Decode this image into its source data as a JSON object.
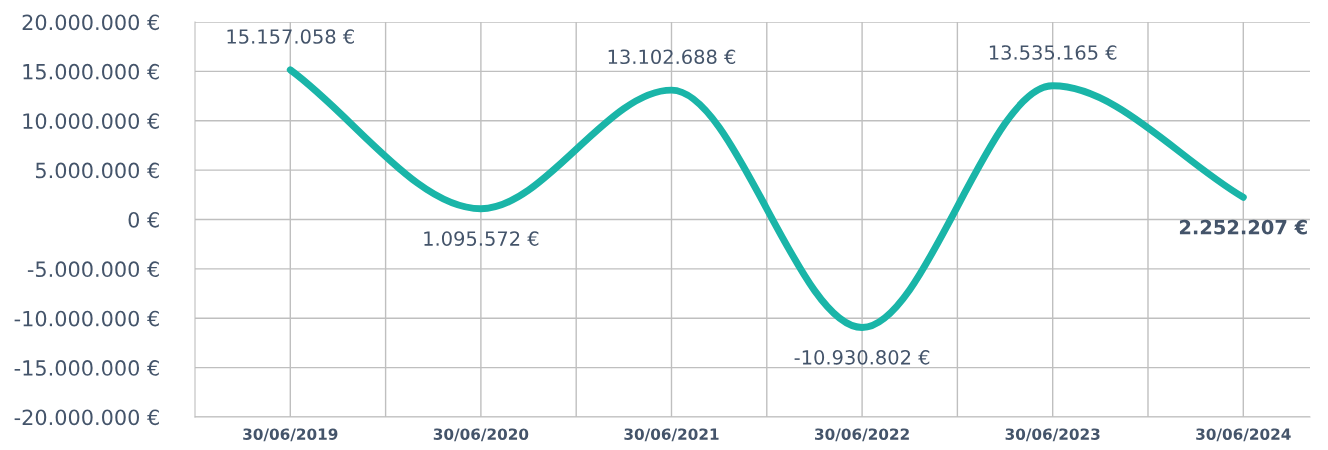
{
  "chart_data": {
    "type": "line",
    "categories": [
      "30/06/2019",
      "30/06/2020",
      "30/06/2021",
      "30/06/2022",
      "30/06/2023",
      "30/06/2024"
    ],
    "series": [
      {
        "color": "#1ab5a8",
        "values": [
          15157058,
          1095572,
          13102688,
          -10930802,
          13535165,
          2252207
        ],
        "value_labels": [
          "15.157.058 €",
          "1.095.572 €",
          "13.102.688 €",
          "-10.930.802 €",
          "13.535.165 €",
          "2.252.207 €"
        ]
      }
    ],
    "ylim": [
      -20000000,
      20000000
    ],
    "yticks": [
      {
        "value": -20000000,
        "label": "-20.000.000 €"
      },
      {
        "value": -15000000,
        "label": "-15.000.000 €"
      },
      {
        "value": -10000000,
        "label": "-10.000.000 €"
      },
      {
        "value": -5000000,
        "label": "-5.000.000 €"
      },
      {
        "value": 0,
        "label": "0 €"
      },
      {
        "value": 5000000,
        "label": "5.000.000 €"
      },
      {
        "value": 10000000,
        "label": "10.000.000 €"
      },
      {
        "value": 15000000,
        "label": "15.000.000 €"
      },
      {
        "value": 20000000,
        "label": "20.000.000 €"
      }
    ],
    "grid": true,
    "marker": "none",
    "line_style": "solid"
  }
}
